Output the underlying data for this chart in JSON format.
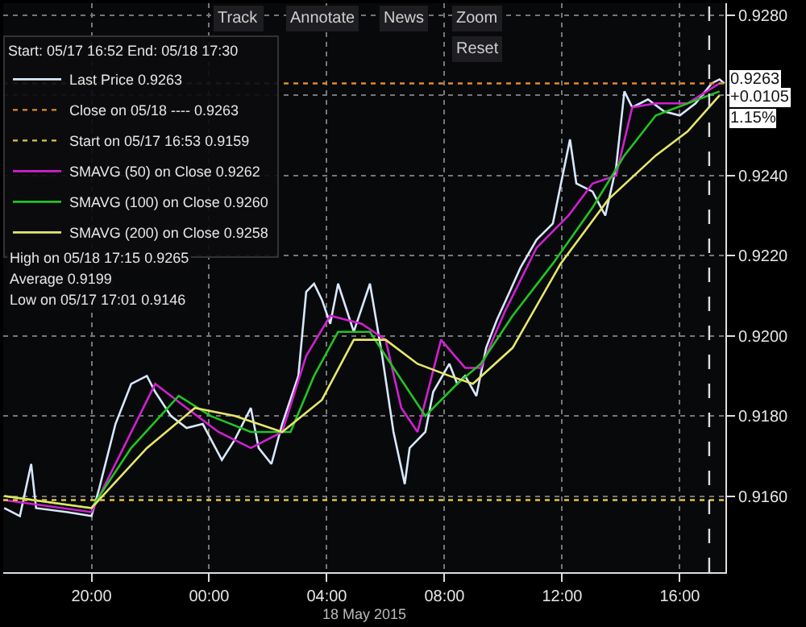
{
  "chart_data": {
    "type": "line",
    "xlabel": "18 May 2015",
    "legend_title": "Start: 05/17 16:52 End: 05/18 17:30",
    "xlim": [
      "2015-05-17T17:00",
      "2015-05-18T17:33"
    ],
    "xticks": [
      {
        "value": "2015-05-17T20:00",
        "label": "20:00"
      },
      {
        "value": "2015-05-18T00:00",
        "label": "00:00"
      },
      {
        "value": "2015-05-18T04:00",
        "label": "04:00"
      },
      {
        "value": "2015-05-18T08:00",
        "label": "08:00"
      },
      {
        "value": "2015-05-18T12:00",
        "label": "12:00"
      },
      {
        "value": "2015-05-18T16:00",
        "label": "16:00"
      }
    ],
    "ylim": [
      0.9141,
      0.9283
    ],
    "yticks": [
      {
        "value": 0.916,
        "label": "0.9160"
      },
      {
        "value": 0.918,
        "label": "0.9180"
      },
      {
        "value": 0.92,
        "label": "0.9200"
      },
      {
        "value": 0.922,
        "label": "0.9220"
      },
      {
        "value": 0.924,
        "label": "0.9240"
      },
      {
        "value": 0.926,
        "label": null
      },
      {
        "value": 0.928,
        "label": "0.9280"
      }
    ],
    "grid": true,
    "legend": "top left",
    "series": [
      {
        "name": "Last Price 0.9263",
        "color": "#d8e8ff",
        "x": [
          "2015-05-17T17:02",
          "2015-05-17T17:34",
          "2015-05-17T17:57",
          "2015-05-17T18:07",
          "2015-05-17T19:11",
          "2015-05-17T20:00",
          "2015-05-17T20:16",
          "2015-05-17T20:49",
          "2015-05-17T21:21",
          "2015-05-17T21:53",
          "2015-05-17T22:10",
          "2015-05-17T22:42",
          "2015-05-17T23:14",
          "2015-05-17T23:47",
          "2015-05-18T00:26",
          "2015-05-18T00:52",
          "2015-05-18T01:25",
          "2015-05-18T01:41",
          "2015-05-18T02:07",
          "2015-05-18T02:29",
          "2015-05-18T03:02",
          "2015-05-18T03:18",
          "2015-05-18T03:34",
          "2015-05-18T03:50",
          "2015-05-18T04:07",
          "2015-05-18T04:23",
          "2015-05-18T04:55",
          "2015-05-18T05:28",
          "2015-05-18T05:53",
          "2015-05-18T06:16",
          "2015-05-18T06:39",
          "2015-05-18T06:49",
          "2015-05-18T07:21",
          "2015-05-18T07:37",
          "2015-05-18T08:10",
          "2015-05-18T08:26",
          "2015-05-18T08:42",
          "2015-05-18T09:05",
          "2015-05-18T09:25",
          "2015-05-18T09:47",
          "2015-05-18T10:13",
          "2015-05-18T10:35",
          "2015-05-18T11:08",
          "2015-05-18T11:41",
          "2015-05-18T12:16",
          "2015-05-18T12:29",
          "2015-05-18T13:02",
          "2015-05-18T13:28",
          "2015-05-18T13:50",
          "2015-05-18T14:07",
          "2015-05-18T14:23",
          "2015-05-18T14:55",
          "2015-05-18T15:28",
          "2015-05-18T16:00",
          "2015-05-18T16:32",
          "2015-05-18T17:05",
          "2015-05-18T17:21",
          "2015-05-18T17:31"
        ],
        "values": [
          0.9157,
          0.9155,
          0.9168,
          0.9157,
          0.9156,
          0.9155,
          0.9162,
          0.9178,
          0.9188,
          0.919,
          0.9186,
          0.918,
          0.9177,
          0.9178,
          0.9169,
          0.9174,
          0.9182,
          0.9172,
          0.9168,
          0.9178,
          0.919,
          0.9211,
          0.9213,
          0.9209,
          0.9203,
          0.9213,
          0.9201,
          0.9213,
          0.9195,
          0.9176,
          0.9163,
          0.9172,
          0.9176,
          0.9186,
          0.9193,
          0.9188,
          0.919,
          0.9185,
          0.9197,
          0.9204,
          0.9211,
          0.9217,
          0.9224,
          0.9228,
          0.9249,
          0.9238,
          0.9236,
          0.923,
          0.9242,
          0.9261,
          0.9257,
          0.9259,
          0.9256,
          0.9255,
          0.9258,
          0.9263,
          0.9264,
          0.9263
        ]
      },
      {
        "name": "SMAVG (50) on Close 0.9262",
        "color": "#d020d0",
        "x": [
          "2015-05-17T17:02",
          "2015-05-17T20:00",
          "2015-05-17T21:05",
          "2015-05-17T22:10",
          "2015-05-17T23:14",
          "2015-05-18T00:19",
          "2015-05-18T01:25",
          "2015-05-18T02:29",
          "2015-05-18T03:18",
          "2015-05-18T04:07",
          "2015-05-18T05:11",
          "2015-05-18T06:00",
          "2015-05-18T06:32",
          "2015-05-18T07:05",
          "2015-05-18T07:53",
          "2015-05-18T08:42",
          "2015-05-18T09:14",
          "2015-05-18T10:03",
          "2015-05-18T11:08",
          "2015-05-18T12:13",
          "2015-05-18T13:02",
          "2015-05-18T13:50",
          "2015-05-18T14:23",
          "2015-05-18T15:11",
          "2015-05-18T16:16",
          "2015-05-18T17:21"
        ],
        "values": [
          0.9159,
          0.9156,
          0.9172,
          0.9188,
          0.9182,
          0.9176,
          0.9172,
          0.9176,
          0.9195,
          0.9205,
          0.9203,
          0.9199,
          0.9182,
          0.9176,
          0.9199,
          0.9192,
          0.9192,
          0.9206,
          0.9222,
          0.923,
          0.9238,
          0.924,
          0.9257,
          0.9258,
          0.9258,
          0.9263
        ]
      },
      {
        "name": "SMAVG (100) on Close 0.9260",
        "color": "#22c422",
        "x": [
          "2015-05-17T17:02",
          "2015-05-17T20:00",
          "2015-05-17T21:21",
          "2015-05-17T22:58",
          "2015-05-18T00:03",
          "2015-05-18T01:25",
          "2015-05-18T02:46",
          "2015-05-18T03:34",
          "2015-05-18T04:23",
          "2015-05-18T05:28",
          "2015-05-18T06:16",
          "2015-05-18T07:21",
          "2015-05-18T08:26",
          "2015-05-18T09:14",
          "2015-05-18T10:19",
          "2015-05-18T11:41",
          "2015-05-18T13:02",
          "2015-05-18T14:07",
          "2015-05-18T15:11",
          "2015-05-18T16:16",
          "2015-05-18T17:21"
        ],
        "values": [
          0.916,
          0.9157,
          0.9172,
          0.9185,
          0.918,
          0.9176,
          0.9176,
          0.919,
          0.9201,
          0.9201,
          0.9192,
          0.918,
          0.9188,
          0.9193,
          0.9205,
          0.9218,
          0.9232,
          0.9245,
          0.9255,
          0.9258,
          0.9261
        ]
      },
      {
        "name": "SMAVG (200) on Close 0.9258",
        "color": "#e6e66a",
        "x": [
          "2015-05-17T17:02",
          "2015-05-17T20:00",
          "2015-05-17T21:53",
          "2015-05-17T23:31",
          "2015-05-18T00:52",
          "2015-05-18T02:29",
          "2015-05-18T03:50",
          "2015-05-18T04:55",
          "2015-05-18T06:00",
          "2015-05-18T07:05",
          "2015-05-18T08:10",
          "2015-05-18T08:58",
          "2015-05-18T10:19",
          "2015-05-18T11:57",
          "2015-05-18T13:34",
          "2015-05-18T15:11",
          "2015-05-18T16:16",
          "2015-05-18T17:21"
        ],
        "values": [
          0.916,
          0.9157,
          0.9172,
          0.9182,
          0.918,
          0.9176,
          0.9184,
          0.9199,
          0.9199,
          0.9193,
          0.919,
          0.9188,
          0.9197,
          0.9218,
          0.9234,
          0.9245,
          0.9251,
          0.926
        ]
      }
    ],
    "ref_lines": [
      {
        "axis": "y",
        "value": 0.9263,
        "label": "Close on 05/18 ---- 0.9263",
        "color": "#e08a2a",
        "line_style": "dotted"
      },
      {
        "axis": "y",
        "value": 0.9159,
        "label": "Start on 05/17 16:53 0.9159",
        "color": "#e0c840",
        "line_style": "dotted"
      },
      {
        "axis": "x",
        "value": "2015-05-18T17:00",
        "color": "#dddddd",
        "line_style": "dashed"
      }
    ],
    "annotations": [
      "High on 05/18 17:15 0.9265",
      "Average 0.9199",
      "Low on 05/17 17:01 0.9146",
      "Track",
      "Annotate",
      "News",
      "Zoom",
      "Reset",
      "0.9263",
      "+0.0105",
      "1.15%"
    ]
  }
}
